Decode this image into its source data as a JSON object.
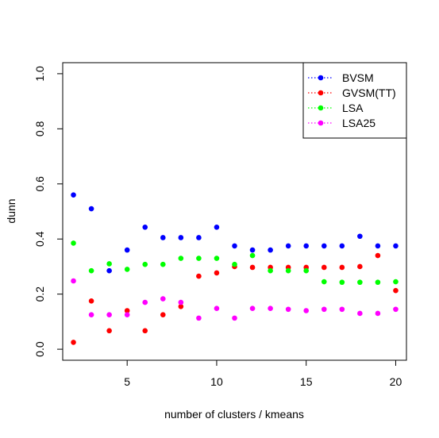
{
  "chart_data": {
    "type": "scatter",
    "xlabel": "number of clusters / kmeans",
    "ylabel": "dunn",
    "xlim": [
      1.4,
      20.6
    ],
    "ylim": [
      -0.04,
      1.04
    ],
    "xticks": [
      5,
      10,
      15,
      20
    ],
    "yticks": [
      0.0,
      0.2,
      0.4,
      0.6,
      0.8,
      1.0
    ],
    "xtick_labels": [
      "5",
      "10",
      "15",
      "20"
    ],
    "ytick_labels": [
      "0.0",
      "0.2",
      "0.4",
      "0.6",
      "0.8",
      "1.0"
    ],
    "grid": false,
    "legend_position": "top-right",
    "x": [
      2,
      3,
      4,
      5,
      6,
      7,
      8,
      9,
      10,
      11,
      12,
      13,
      14,
      15,
      16,
      17,
      18,
      19,
      20
    ],
    "series": [
      {
        "name": "BVSM",
        "color": "#0000ff",
        "values": [
          0.56,
          0.51,
          0.285,
          0.36,
          0.443,
          0.405,
          0.405,
          0.405,
          0.443,
          0.375,
          0.36,
          0.36,
          0.375,
          0.375,
          0.375,
          0.375,
          0.41,
          0.375,
          0.375
        ]
      },
      {
        "name": "GVSM(TT)",
        "color": "#ff0000",
        "values": [
          0.025,
          0.175,
          0.067,
          0.14,
          0.067,
          0.125,
          0.155,
          0.265,
          0.277,
          0.3,
          0.297,
          0.297,
          0.297,
          0.297,
          0.297,
          0.297,
          0.3,
          0.34,
          0.213
        ]
      },
      {
        "name": "LSA",
        "color": "#00ff00",
        "values": [
          0.385,
          0.285,
          0.31,
          0.29,
          0.308,
          0.308,
          0.33,
          0.33,
          0.33,
          0.308,
          0.34,
          0.285,
          0.285,
          0.285,
          0.245,
          0.243,
          0.243,
          0.243,
          0.245
        ]
      },
      {
        "name": "LSA25",
        "color": "#ff00ff",
        "values": [
          0.248,
          0.125,
          0.125,
          0.125,
          0.17,
          0.183,
          0.17,
          0.113,
          0.148,
          0.113,
          0.148,
          0.148,
          0.145,
          0.14,
          0.145,
          0.145,
          0.13,
          0.13,
          0.145
        ]
      }
    ]
  }
}
